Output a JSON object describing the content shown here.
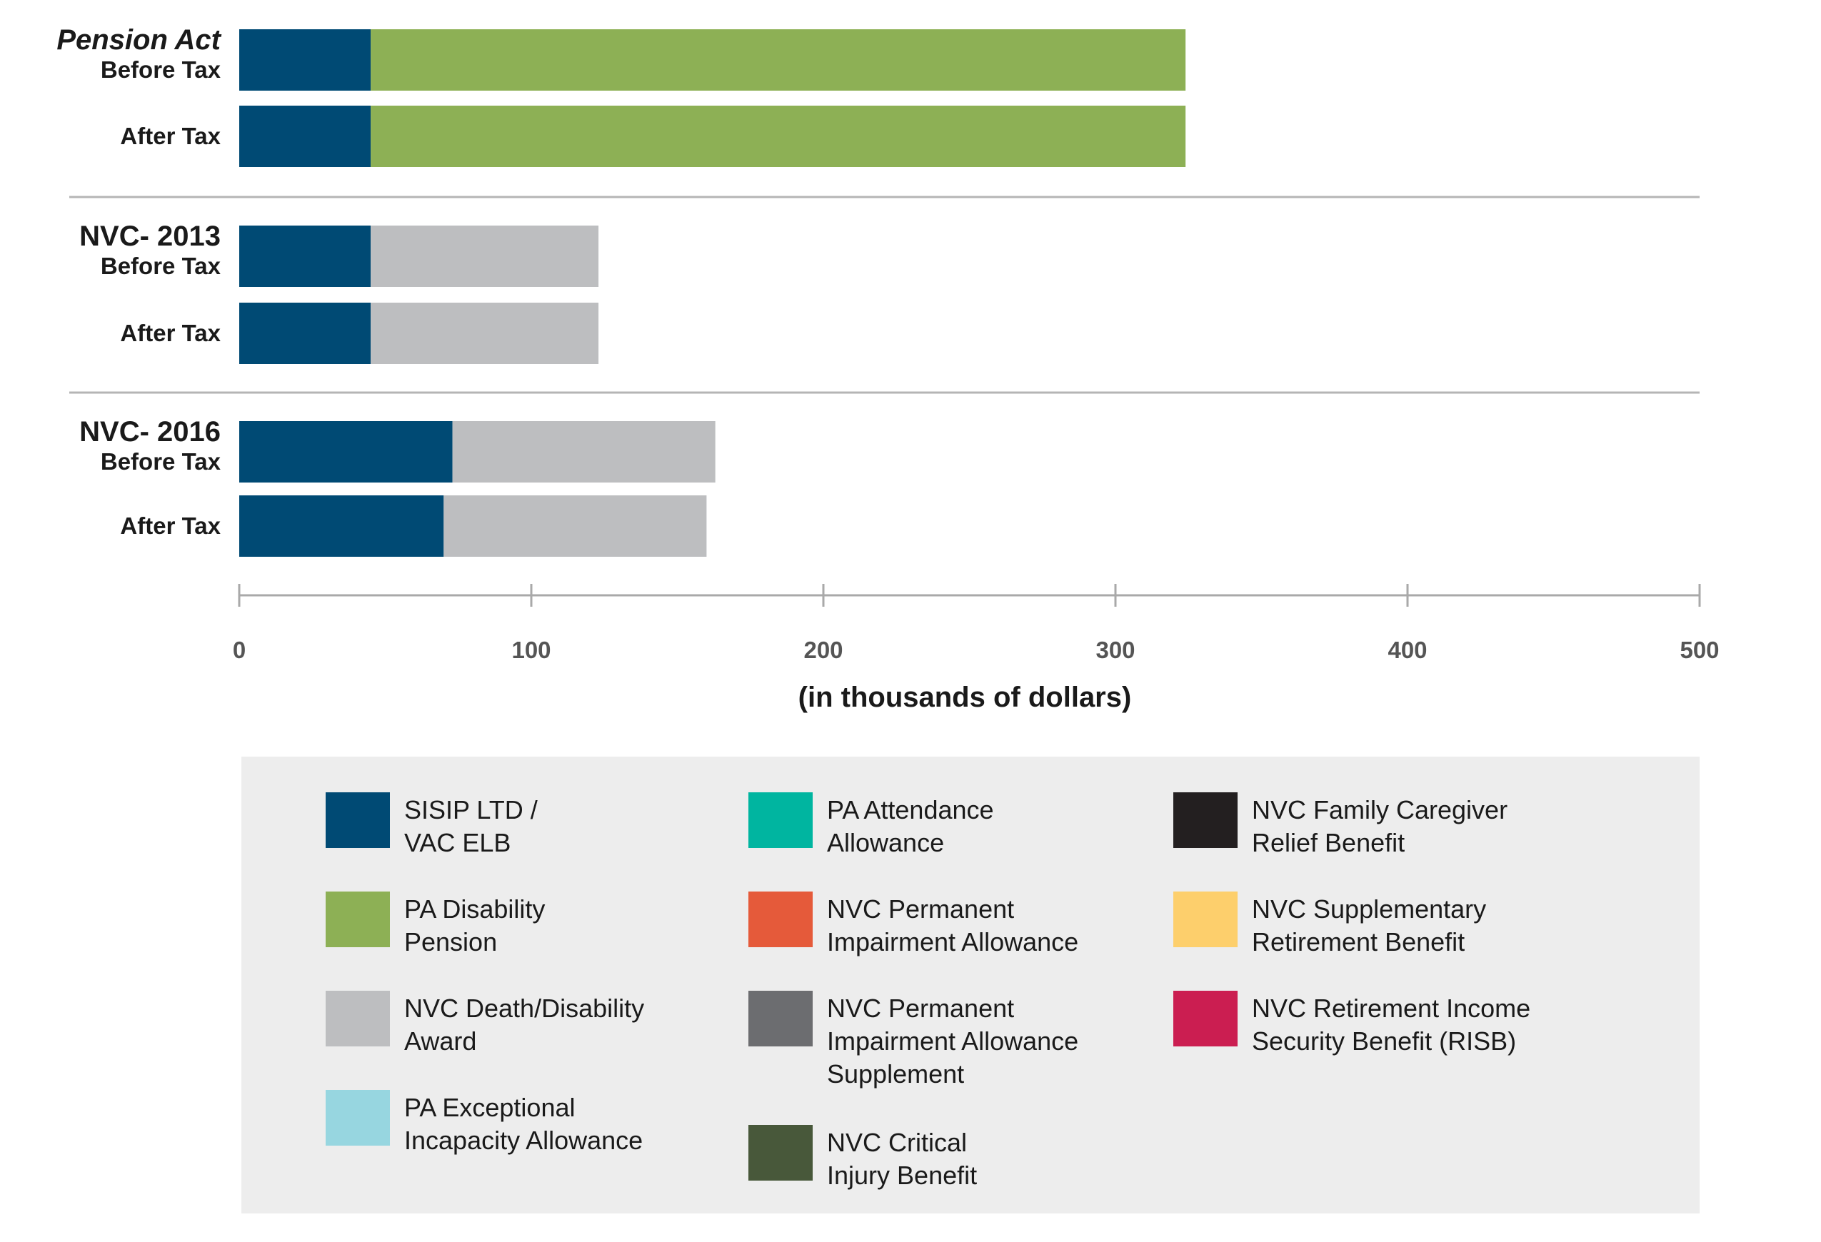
{
  "chart_data": {
    "type": "bar",
    "orientation": "horizontal",
    "stacked": true,
    "xlabel": "(in thousands of dollars)",
    "xlim": [
      0,
      500
    ],
    "xticks": [
      0,
      100,
      200,
      300,
      400,
      500
    ],
    "groups": [
      {
        "title": "Pension Act",
        "italic": true,
        "rows": [
          {
            "label": "Before Tax",
            "segments": [
              {
                "series": "SISIP LTD / VAC ELB",
                "value": 45
              },
              {
                "series": "PA Disability Pension",
                "value": 279
              }
            ]
          },
          {
            "label": "After Tax",
            "segments": [
              {
                "series": "SISIP LTD / VAC ELB",
                "value": 45
              },
              {
                "series": "PA Disability Pension",
                "value": 279
              }
            ]
          }
        ]
      },
      {
        "title": "NVC- 2013",
        "italic": false,
        "rows": [
          {
            "label": "Before Tax",
            "segments": [
              {
                "series": "SISIP LTD / VAC ELB",
                "value": 45
              },
              {
                "series": "NVC Death/Disability Award",
                "value": 78
              }
            ]
          },
          {
            "label": "After Tax",
            "segments": [
              {
                "series": "SISIP LTD / VAC ELB",
                "value": 45
              },
              {
                "series": "NVC Death/Disability Award",
                "value": 78
              }
            ]
          }
        ]
      },
      {
        "title": "NVC- 2016",
        "italic": false,
        "rows": [
          {
            "label": "Before Tax",
            "segments": [
              {
                "series": "SISIP LTD / VAC ELB",
                "value": 73
              },
              {
                "series": "NVC Death/Disability Award",
                "value": 90
              }
            ]
          },
          {
            "label": "After Tax",
            "segments": [
              {
                "series": "SISIP LTD / VAC ELB",
                "value": 70
              },
              {
                "series": "NVC Death/Disability Award",
                "value": 90
              }
            ]
          }
        ]
      }
    ],
    "legend": [
      {
        "name": "SISIP LTD /\nVAC ELB",
        "color": "#004a74"
      },
      {
        "name": "PA Disability\nPension",
        "color": "#8db055"
      },
      {
        "name": "NVC Death/Disability\nAward",
        "color": "#bdbec0"
      },
      {
        "name": "PA Exceptional\nIncapacity Allowance",
        "color": "#97d6e0"
      },
      {
        "name": "PA Attendance\nAllowance",
        "color": "#00b5a0"
      },
      {
        "name": "NVC Permanent\nImpairment Allowance",
        "color": "#e55a3a"
      },
      {
        "name": "NVC Permanent\nImpairment Allowance\nSupplement",
        "color": "#6c6d70"
      },
      {
        "name": "NVC Critical\nInjury Benefit",
        "color": "#48583a"
      },
      {
        "name": "NVC Family Caregiver\nRelief Benefit",
        "color": "#231f20"
      },
      {
        "name": "NVC Supplementary\nRetirement Benefit",
        "color": "#fdcf6c"
      },
      {
        "name": "NVC Retirement Income\nSecurity Benefit (RISB)",
        "color": "#cb1e51"
      }
    ],
    "series_colors": {
      "SISIP LTD / VAC ELB": "#004a74",
      "PA Disability Pension": "#8db055",
      "NVC Death/Disability Award": "#bdbec0"
    },
    "grid": false,
    "legend_position": "bottom"
  }
}
